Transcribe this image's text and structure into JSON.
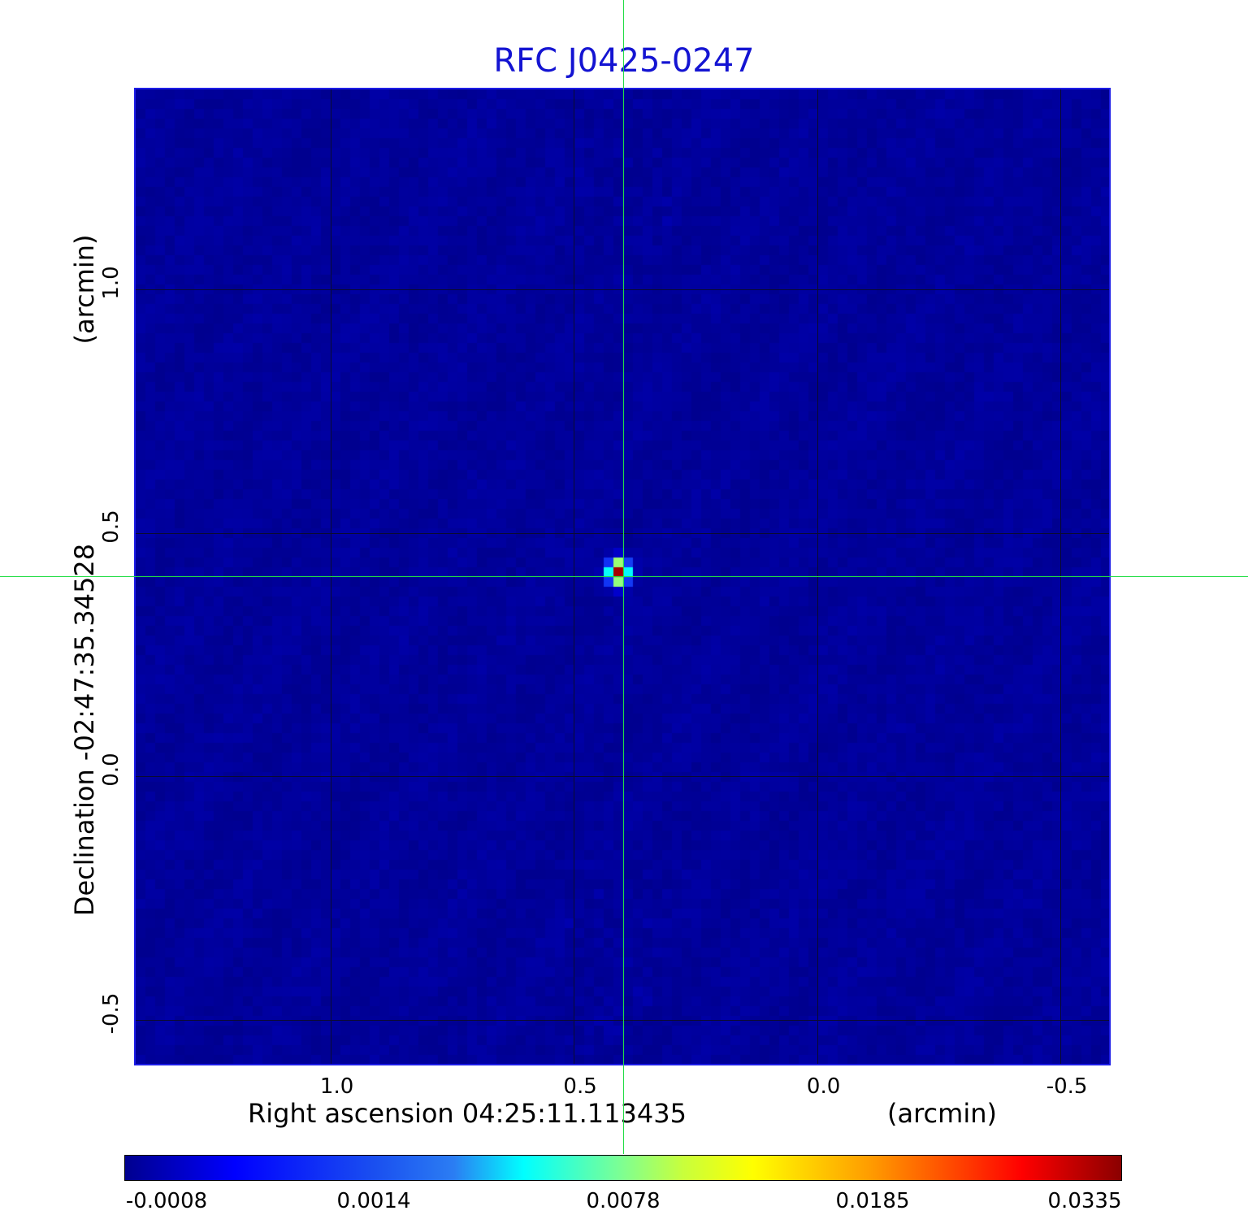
{
  "chart_data": {
    "type": "heatmap",
    "title": "RFC J0425-0247",
    "xlabel": "Right ascension  04:25:11.113435",
    "xunit": "(arcmin)",
    "ylabel": "Declination  -02:47:35.34528",
    "yunit": "(arcmin)",
    "x_ticks": [
      "1.0",
      "0.5",
      "0.0",
      "-0.5"
    ],
    "y_ticks": [
      "1.0",
      "0.5",
      "0.0",
      "-0.5"
    ],
    "x_tick_values": [
      1.0,
      0.5,
      0.0,
      -0.5
    ],
    "y_tick_values": [
      1.0,
      0.5,
      0.0,
      -0.5
    ],
    "xlim": [
      1.4,
      -0.6
    ],
    "ylim": [
      -0.59,
      1.41
    ],
    "grid": true,
    "colormap": "jet",
    "colorbar_ticks": [
      "-0.0008",
      "0.0014",
      "0.0078",
      "0.0185",
      "0.0335"
    ],
    "colorbar_range": [
      -0.0008,
      0.0335
    ],
    "crosshair": [
      0.4,
      0.41
    ],
    "source": {
      "x": 0.4,
      "y": 0.41,
      "peak": 0.0335
    },
    "background_level": -0.0002
  }
}
